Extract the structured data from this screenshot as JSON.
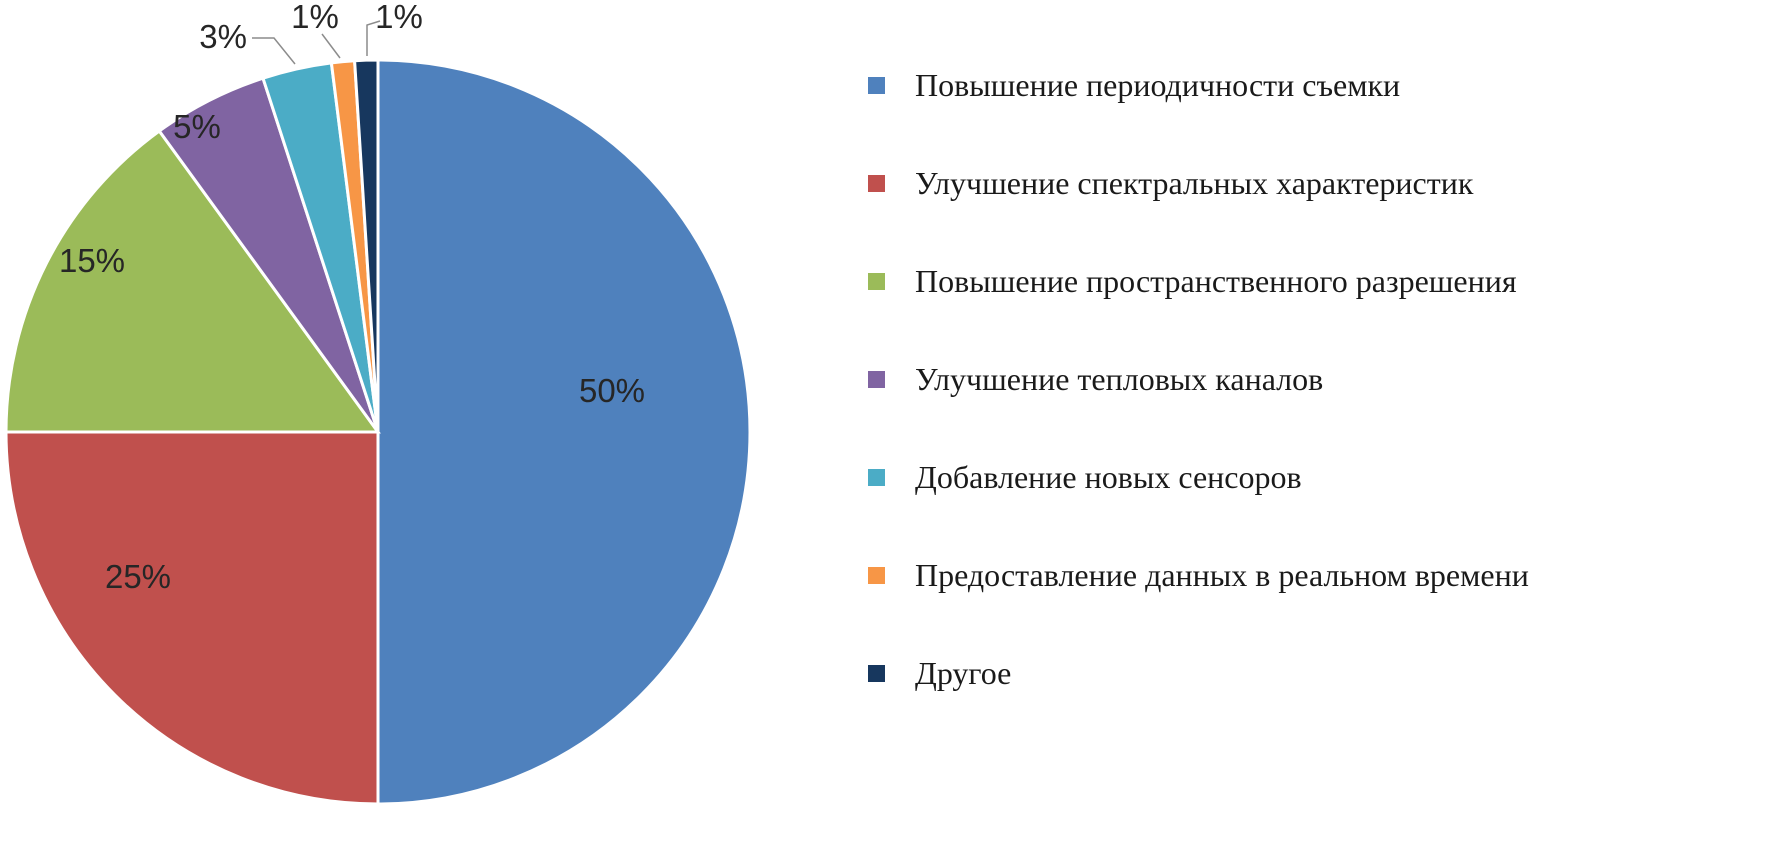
{
  "page": {
    "background": "#ffffff"
  },
  "chart_data": {
    "type": "pie",
    "unit": "%",
    "legend_position": "right",
    "start_angle_deg": -90,
    "direction": "clockwise",
    "slice_border_color": "#ffffff",
    "label_color": "#262626",
    "leader_line_color": "#8c8c8c",
    "series": [
      {
        "name": "Повышение периодичности съемки",
        "value": 50,
        "color": "#4F81BD"
      },
      {
        "name": "Улучшение спектральных характеристик",
        "value": 25,
        "color": "#C0504D"
      },
      {
        "name": "Повышение пространственного разрешения",
        "value": 15,
        "color": "#9BBB59"
      },
      {
        "name": "Улучшение тепловых каналов",
        "value": 5,
        "color": "#8064A2"
      },
      {
        "name": "Добавление новых сенсоров",
        "value": 3,
        "color": "#4BACC6"
      },
      {
        "name": "Предоставление данных в реальном времени",
        "value": 1,
        "color": "#F79646"
      },
      {
        "name": "Другое",
        "value": 1,
        "color": "#17375E"
      }
    ],
    "labels": [
      "50%",
      "25%",
      "15%",
      "5%",
      "3%",
      "1%",
      "1%"
    ]
  }
}
